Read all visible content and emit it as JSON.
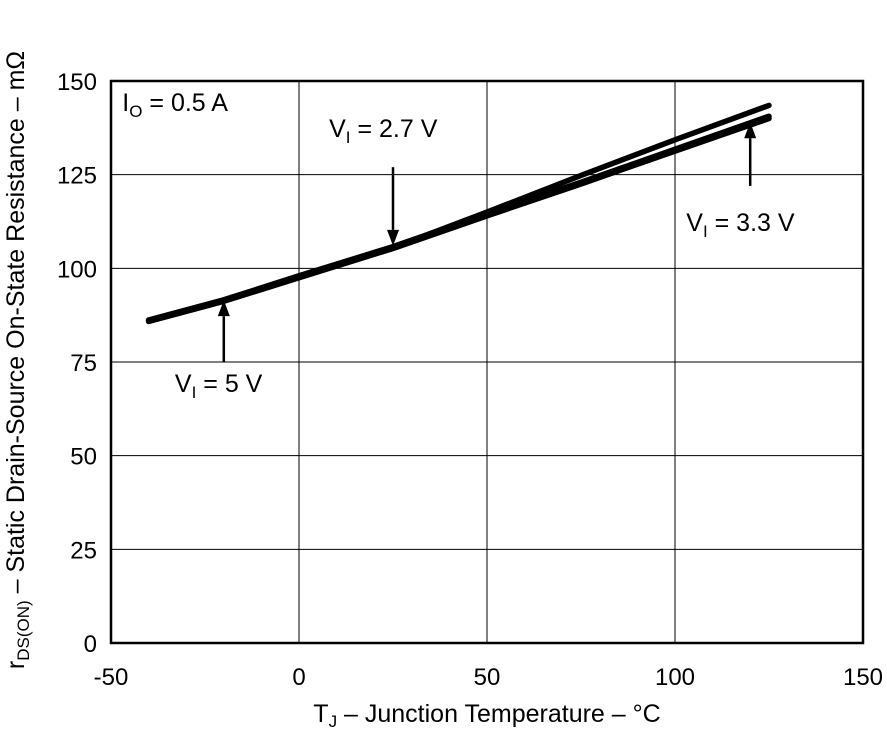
{
  "chart_data": {
    "type": "line",
    "title": "",
    "xlabel": {
      "main": "T",
      "sub": "J",
      "rest": " – Junction Temperature – °C"
    },
    "ylabel": {
      "main": "r",
      "sub": "DS(ON)",
      "rest": " – Static Drain-Source On-State Resistance – mΩ"
    },
    "xlim": [
      -50,
      150
    ],
    "ylim": [
      0,
      150
    ],
    "xticks": [
      -50,
      0,
      50,
      100,
      150
    ],
    "yticks": [
      0,
      25,
      50,
      75,
      100,
      125,
      150
    ],
    "grid": true,
    "series": [
      {
        "name": "VI = 5 V",
        "x": [
          -40,
          -20,
          0,
          25,
          50,
          75,
          100,
          125
        ],
        "y": [
          85.8,
          91.2,
          97.5,
          105.3,
          114.0,
          122.5,
          131.3,
          140.0
        ]
      },
      {
        "name": "VI = 3.3 V",
        "x": [
          -40,
          -20,
          0,
          25,
          50,
          75,
          100,
          125
        ],
        "y": [
          86.2,
          91.6,
          98.0,
          105.8,
          114.5,
          123.0,
          131.8,
          140.6
        ]
      },
      {
        "name": "VI = 2.7 V",
        "x": [
          -40,
          -20,
          0,
          25,
          50,
          75,
          100,
          125
        ],
        "y": [
          86.0,
          91.4,
          97.8,
          105.5,
          115.0,
          124.8,
          134.3,
          143.5
        ]
      }
    ],
    "annotations": [
      {
        "id": "io",
        "main": "I",
        "sub": "O",
        "rest": " = 0.5 A",
        "x": -47,
        "y": 142
      },
      {
        "id": "v27",
        "main": "V",
        "sub": "I",
        "rest": " = 2.7 V",
        "x": 8,
        "y": 135,
        "arrow_from": [
          25,
          127
        ],
        "arrow_to": [
          25,
          106
        ]
      },
      {
        "id": "v33",
        "main": "V",
        "sub": "I",
        "rest": " = 3.3 V",
        "x": 103,
        "y": 110,
        "arrow_from": [
          120,
          122
        ],
        "arrow_to": [
          120,
          139
        ]
      },
      {
        "id": "v5",
        "main": "V",
        "sub": "I",
        "rest": " = 5 V",
        "x": -33,
        "y": 67,
        "arrow_from": [
          -20,
          75
        ],
        "arrow_to": [
          -20,
          91.5
        ]
      }
    ]
  }
}
